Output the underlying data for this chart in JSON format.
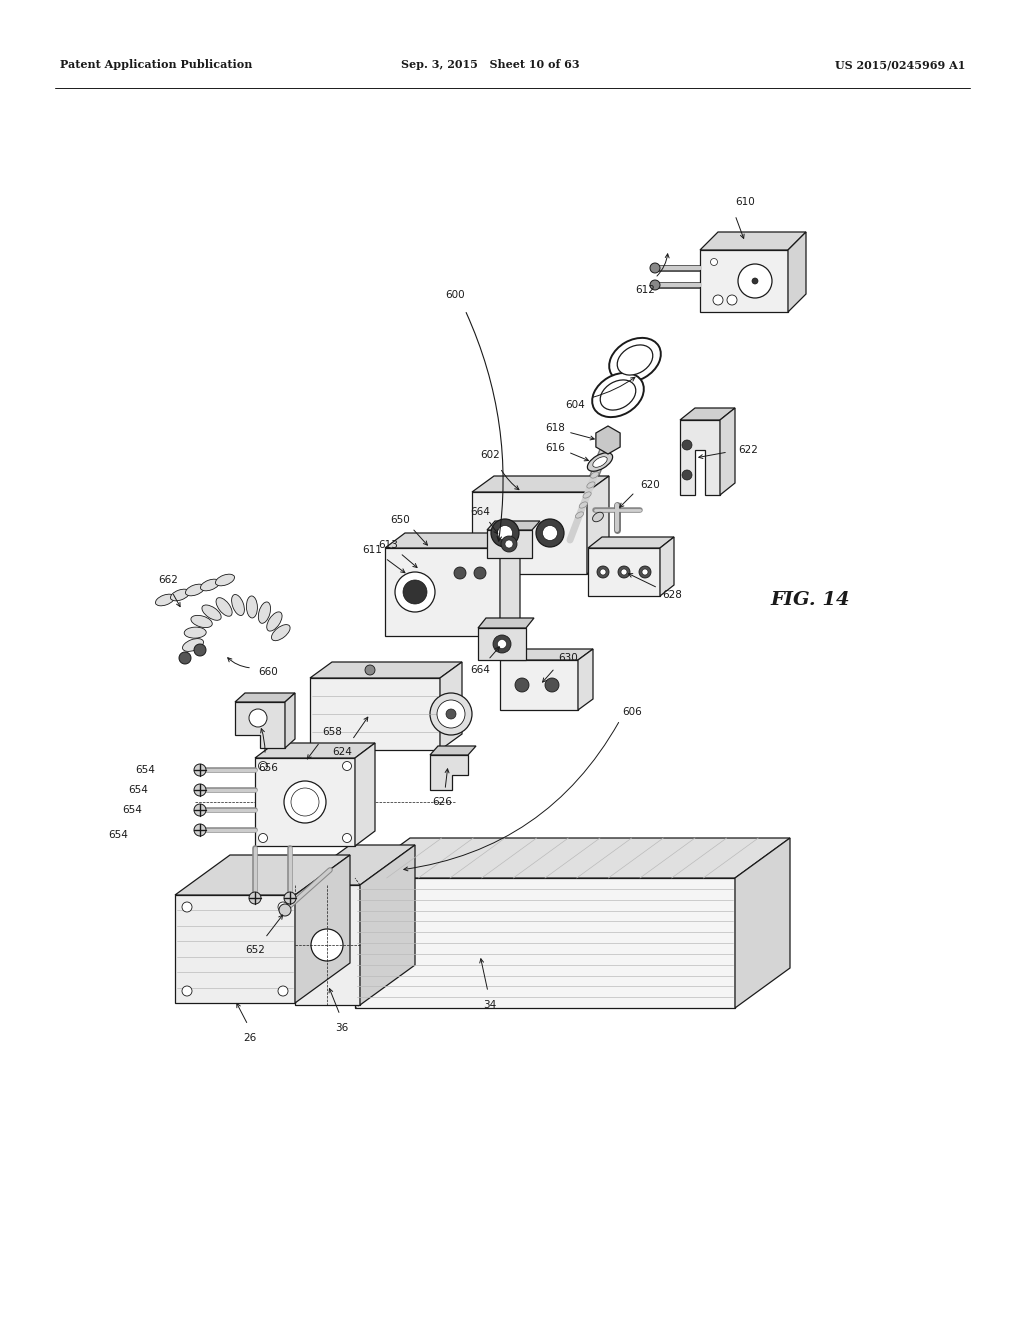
{
  "bg_color": "#ffffff",
  "line_color": "#1a1a1a",
  "header_left": "Patent Application Publication",
  "header_center": "Sep. 3, 2015   Sheet 10 of 63",
  "header_right": "US 2015/0245969 A1",
  "fig_label": "FIG. 14",
  "line_color_mid": "#555555",
  "line_color_light": "#888888"
}
